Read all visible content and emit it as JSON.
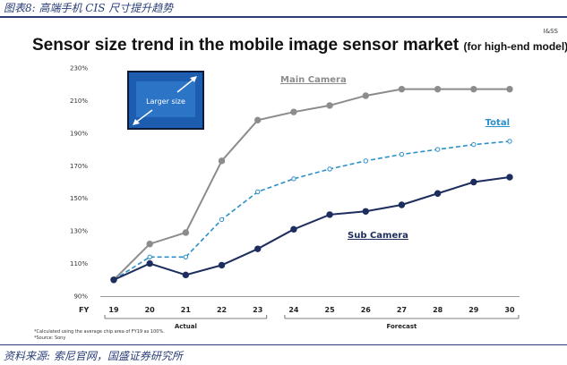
{
  "caption": "图表8:  高端手机 CIS 尺寸提升趋势",
  "corner_tag": "I&SS",
  "title_main": "Sensor size trend in the mobile image sensor market",
  "title_sub": "(for high-end model)",
  "source": "资料来源:  索尼官网，国盛证券研究所",
  "footnotes": [
    "*Calculated using the average chip area of FY19 as 100%.",
    "*Source: Sony"
  ],
  "inset": {
    "label": "Larger size"
  },
  "colors": {
    "main": "#8c8c8c",
    "total": "#2b8fc9",
    "sub": "#1c2d5e",
    "inset_bg": "#1c5db0"
  },
  "chart_data": {
    "type": "line",
    "xlabel": "FY",
    "categories": [
      "19",
      "20",
      "21",
      "22",
      "23",
      "24",
      "25",
      "26",
      "27",
      "28",
      "29",
      "30"
    ],
    "y_ticks": [
      "230%",
      "210%",
      "190%",
      "170%",
      "150%",
      "130%",
      "110%",
      "90%"
    ],
    "ylim": [
      90,
      230
    ],
    "periods": [
      {
        "label": "Actual",
        "from": "19",
        "to": "23"
      },
      {
        "label": "Forecast",
        "from": "24",
        "to": "30"
      }
    ],
    "series": [
      {
        "name": "Main Camera",
        "key": "main",
        "values": [
          100,
          122,
          129,
          173,
          198,
          203,
          207,
          213,
          217,
          217,
          217,
          217
        ]
      },
      {
        "name": "Total",
        "key": "total",
        "values": [
          100,
          114,
          114,
          137,
          154,
          162,
          168,
          173,
          177,
          180,
          183,
          185
        ]
      },
      {
        "name": "Sub Camera",
        "key": "sub",
        "values": [
          100,
          110,
          103,
          109,
          119,
          131,
          140,
          142,
          146,
          153,
          160,
          163
        ]
      }
    ]
  }
}
